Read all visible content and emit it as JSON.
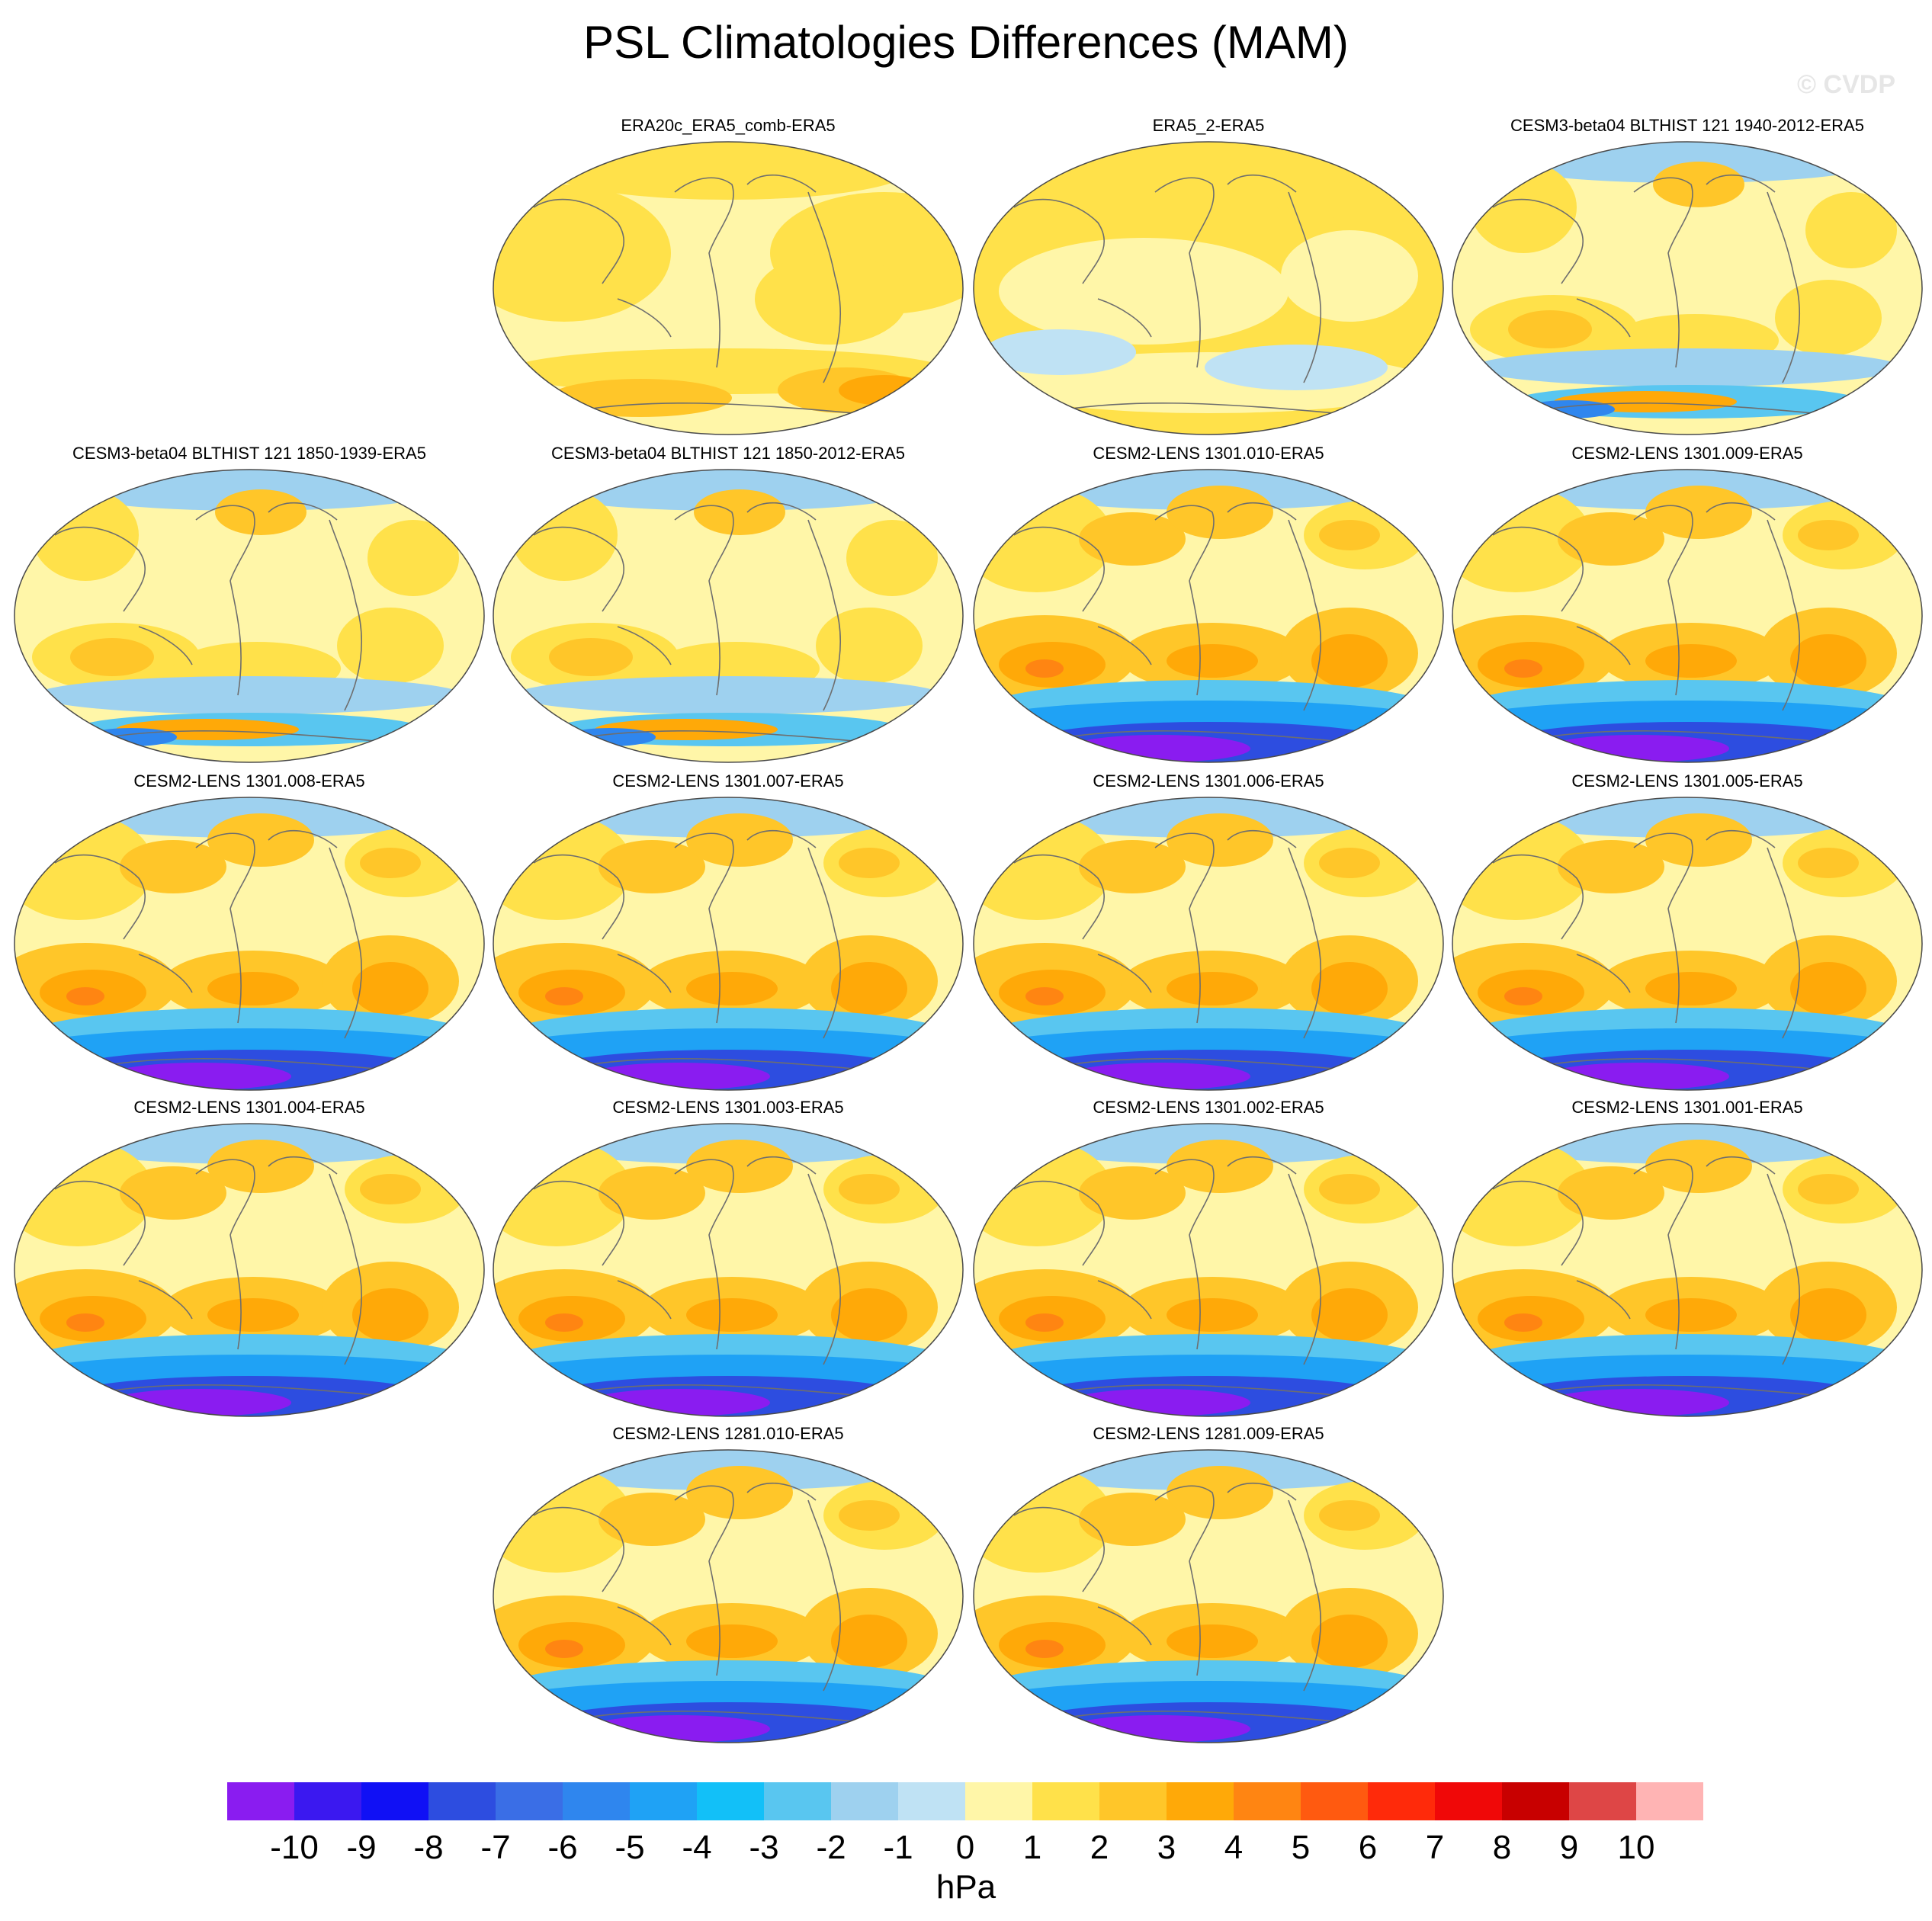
{
  "title": "PSL Climatologies Differences (MAM)",
  "watermark": "© CVDP",
  "units": "hPa",
  "colorbar": {
    "labels": [
      "-10",
      "-9",
      "-8",
      "-7",
      "-6",
      "-5",
      "-4",
      "-3",
      "-2",
      "-1",
      "0",
      "1",
      "2",
      "3",
      "4",
      "5",
      "6",
      "7",
      "8",
      "9",
      "10"
    ],
    "colors": [
      "#8a1cf0",
      "#3b18f0",
      "#1010f5",
      "#2d4de0",
      "#3a6ee6",
      "#2f86ee",
      "#1fa2f5",
      "#12c0f8",
      "#59c6f0",
      "#9ed1ef",
      "#bfe2f4",
      "#fff6a8",
      "#ffe14a",
      "#ffc629",
      "#ffa908",
      "#ff8512",
      "#ff5a10",
      "#ff2a0a",
      "#f00808",
      "#c80000",
      "#de4646",
      "#ffb4b4"
    ]
  },
  "panels": [
    {
      "title": "ERA20c_ERA5_comb-ERA5",
      "style": "reanalysis"
    },
    {
      "title": "ERA5_2-ERA5",
      "style": "reanalysis2"
    },
    {
      "title": "CESM3-beta04 BLTHIST 121 1940-2012-ERA5",
      "style": "cesm3"
    },
    {
      "title": "CESM3-beta04 BLTHIST 121 1850-1939-ERA5",
      "style": "cesm3"
    },
    {
      "title": "CESM3-beta04 BLTHIST 121 1850-2012-ERA5",
      "style": "cesm3"
    },
    {
      "title": "CESM2-LENS 1301.010-ERA5",
      "style": "cesm2"
    },
    {
      "title": "CESM2-LENS 1301.009-ERA5",
      "style": "cesm2"
    },
    {
      "title": "CESM2-LENS 1301.008-ERA5",
      "style": "cesm2"
    },
    {
      "title": "CESM2-LENS 1301.007-ERA5",
      "style": "cesm2"
    },
    {
      "title": "CESM2-LENS 1301.006-ERA5",
      "style": "cesm2"
    },
    {
      "title": "CESM2-LENS 1301.005-ERA5",
      "style": "cesm2"
    },
    {
      "title": "CESM2-LENS 1301.004-ERA5",
      "style": "cesm2"
    },
    {
      "title": "CESM2-LENS 1301.003-ERA5",
      "style": "cesm2"
    },
    {
      "title": "CESM2-LENS 1301.002-ERA5",
      "style": "cesm2"
    },
    {
      "title": "CESM2-LENS 1301.001-ERA5",
      "style": "cesm2"
    },
    {
      "title": "CESM2-LENS 1281.010-ERA5",
      "style": "cesm2"
    },
    {
      "title": "CESM2-LENS 1281.009-ERA5",
      "style": "cesm2"
    }
  ]
}
